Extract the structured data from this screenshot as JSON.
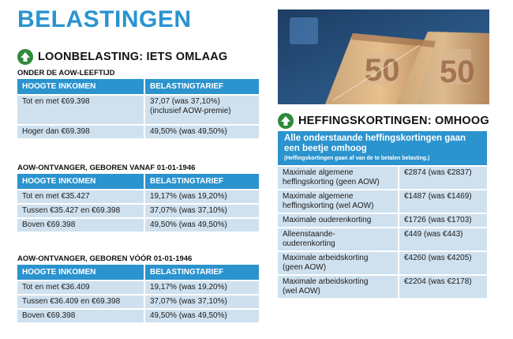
{
  "title": "BELASTINGEN",
  "loonbelasting": {
    "heading": "LOONBELASTING: IETS OMLAAG",
    "arrow_icon": "arrow-up-icon",
    "subtitle": "ONDER DE AOW-LEEFTIJD",
    "headers": [
      "HOOGTE INKOMEN",
      "BELASTINGTARIEF"
    ],
    "rows": [
      {
        "inkomen": "Tot en met €69.398",
        "tarief": "37,07 (was 37,10%)",
        "tarief_extra": "(inclusief AOW-premie)"
      },
      {
        "inkomen": "Hoger dan €69.398",
        "tarief": "49,50% (was 49,50%)",
        "tarief_extra": ""
      }
    ]
  },
  "aow_vanaf": {
    "subtitle": "AOW-ONTVANGER, GEBOREN VANAF 01-01-1946",
    "headers": [
      "HOOGTE INKOMEN",
      "BELASTINGTARIEF"
    ],
    "rows": [
      {
        "inkomen": "Tot en met €35.427",
        "tarief": "19,17% (was 19,20%)"
      },
      {
        "inkomen": "Tussen €35.427 en €69.398",
        "tarief": "37,07% (was 37,10%)"
      },
      {
        "inkomen": "Boven €69.398",
        "tarief": "49,50% (was 49,50%)"
      }
    ]
  },
  "aow_voor": {
    "subtitle": "AOW-ONTVANGER, GEBOREN VÓÓR 01-01-1946",
    "headers": [
      "HOOGTE INKOMEN",
      "BELASTINGTARIEF"
    ],
    "rows": [
      {
        "inkomen": "Tot en met €36.409",
        "tarief": "19,17% (was 19,20%)"
      },
      {
        "inkomen": "Tussen €36.409 en €69.398",
        "tarief": "37,07% (was 37,10%)"
      },
      {
        "inkomen": "Boven €69.398",
        "tarief": "49,50% (was 49,50%)"
      }
    ]
  },
  "heffingskortingen": {
    "heading": "HEFFINGSKORTINGEN: OMHOOG",
    "arrow_icon": "arrow-up-icon",
    "intro": "Alle onderstaande heffingskortingen gaan een beetje omhoog",
    "note": "(Heffingskortingen gaan af van de te betalen belasting.)",
    "rows": [
      {
        "label_1": "Maximale algemene",
        "label_2": "heffingskorting (geen AOW)",
        "value": "€2874 (was €2837)"
      },
      {
        "label_1": "Maximale algemene",
        "label_2": "heffingskorting (wel AOW)",
        "value": "€1487 (was €1469)"
      },
      {
        "label_1": "Maximale ouderenkorting",
        "label_2": "",
        "value": "€1726 (was €1703)"
      },
      {
        "label_1": "Alleenstaande-",
        "label_2": "ouderenkorting",
        "value": "€449 (was €443)"
      },
      {
        "label_1": "Maximale arbeidskorting",
        "label_2": "(geen AOW)",
        "value": "€4260 (was €4205)"
      },
      {
        "label_1": "Maximale arbeidskorting",
        "label_2": "(wel AOW)",
        "value": "€2204 (was €2178)"
      }
    ]
  },
  "photo": {
    "banknote_value": "50"
  }
}
